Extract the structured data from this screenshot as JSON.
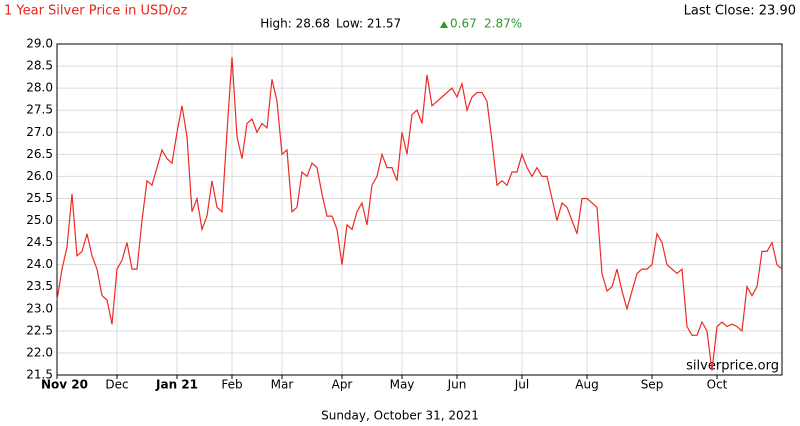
{
  "chart_data": {
    "type": "line",
    "title": "1 Year Silver Price in USD/oz",
    "last_close": "Last Close: 23.90",
    "stats": {
      "high": "High: 28.68",
      "low": "Low: 21.57",
      "change": "0.67",
      "change_pct": "2.87%"
    },
    "source": "silverprice.org",
    "date": "Sunday, October 31, 2021",
    "grid": true,
    "ylim": [
      21.5,
      29.0
    ],
    "yticks": [
      {
        "value": 21.5,
        "label": "21.5"
      },
      {
        "value": 22,
        "label": "22.0"
      },
      22.5,
      {
        "value": 23,
        "label": "23.0"
      },
      23.5,
      {
        "value": 24,
        "label": "24.0"
      },
      24.5,
      {
        "value": 25,
        "label": "25.0"
      },
      25.5,
      {
        "value": 26,
        "label": "26.0"
      },
      26.5,
      {
        "value": 27,
        "label": "27.0"
      },
      27.5,
      {
        "value": 28,
        "label": "28.0"
      },
      28.5,
      {
        "value": 29,
        "label": "29.0"
      }
    ],
    "categories": [
      "Nov 20",
      null,
      null,
      null,
      null,
      null,
      null,
      null,
      null,
      null,
      null,
      null,
      "Dec",
      null,
      null,
      null,
      null,
      null,
      null,
      null,
      null,
      null,
      null,
      null,
      "Jan 21",
      null,
      null,
      null,
      null,
      null,
      null,
      null,
      null,
      null,
      null,
      "Feb",
      null,
      null,
      null,
      null,
      null,
      null,
      null,
      null,
      null,
      "Mar",
      null,
      null,
      null,
      null,
      null,
      null,
      null,
      null,
      null,
      null,
      null,
      "Apr",
      null,
      null,
      null,
      null,
      null,
      null,
      null,
      null,
      null,
      null,
      null,
      "May",
      null,
      null,
      null,
      null,
      null,
      null,
      null,
      null,
      null,
      null,
      "Jun",
      null,
      null,
      null,
      null,
      null,
      null,
      null,
      null,
      null,
      null,
      null,
      null,
      "Jul",
      null,
      null,
      null,
      null,
      null,
      null,
      null,
      null,
      null,
      null,
      null,
      null,
      "Aug",
      null,
      null,
      null,
      null,
      null,
      null,
      null,
      null,
      null,
      null,
      null,
      null,
      "Sep",
      null,
      null,
      null,
      null,
      null,
      null,
      null,
      null,
      null,
      null,
      null,
      null,
      "Oct",
      null,
      null,
      null,
      null,
      null,
      null,
      null,
      null,
      null,
      null,
      null,
      null,
      null
    ],
    "series": [
      {
        "name": "Silver",
        "color": "#ee2a24",
        "values": [
          23.2,
          23.9,
          24.4,
          25.6,
          24.2,
          24.3,
          24.7,
          24.2,
          23.9,
          23.3,
          23.2,
          22.65,
          23.9,
          24.1,
          24.5,
          23.9,
          23.9,
          25.0,
          25.9,
          25.8,
          26.2,
          26.6,
          26.4,
          26.3,
          27.0,
          27.6,
          26.9,
          25.2,
          25.5,
          24.8,
          25.1,
          25.9,
          25.3,
          25.2,
          27.0,
          28.7,
          26.9,
          26.4,
          27.2,
          27.3,
          27.0,
          27.2,
          27.1,
          28.2,
          27.7,
          26.5,
          26.6,
          25.2,
          25.3,
          26.1,
          26.0,
          26.3,
          26.2,
          25.6,
          25.1,
          25.1,
          24.8,
          24.0,
          24.9,
          24.8,
          25.2,
          25.4,
          24.9,
          25.8,
          26.0,
          26.5,
          26.2,
          26.2,
          25.9,
          27.0,
          26.5,
          27.4,
          27.5,
          27.2,
          28.3,
          27.6,
          27.7,
          27.8,
          27.9,
          28.0,
          27.8,
          28.1,
          27.5,
          27.8,
          27.9,
          27.9,
          27.7,
          26.8,
          25.8,
          25.9,
          25.8,
          26.1,
          26.1,
          26.5,
          26.2,
          26.0,
          26.2,
          26.0,
          26.0,
          25.5,
          25.0,
          25.4,
          25.3,
          25.0,
          24.7,
          25.5,
          25.5,
          25.4,
          25.3,
          23.8,
          23.4,
          23.5,
          23.9,
          23.4,
          23.0,
          23.4,
          23.8,
          23.9,
          23.9,
          24.0,
          24.7,
          24.5,
          24.0,
          23.9,
          23.8,
          23.9,
          22.6,
          22.4,
          22.4,
          22.7,
          22.5,
          21.6,
          22.6,
          22.7,
          22.6,
          22.65,
          22.6,
          22.5,
          23.5,
          23.3,
          23.5,
          24.3,
          24.3,
          24.5,
          24.0,
          23.9
        ]
      }
    ]
  }
}
